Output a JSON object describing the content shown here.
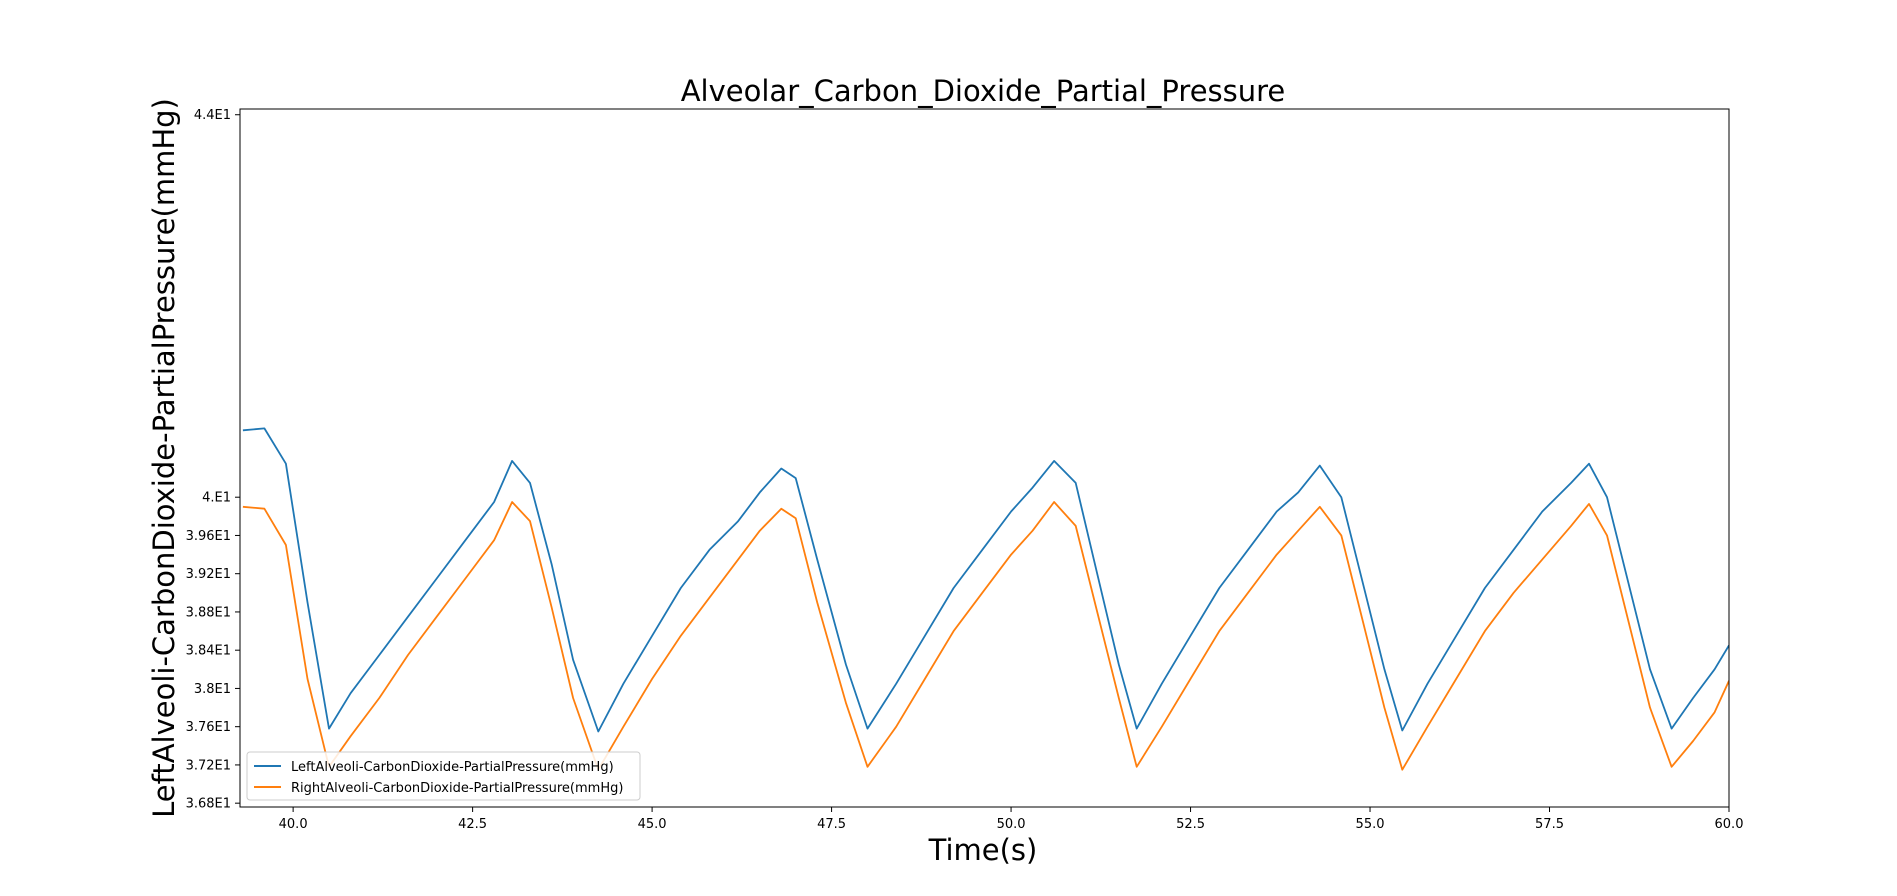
{
  "chart_data": {
    "type": "line",
    "title": "Alveolar_Carbon_Dioxide_Partial_Pressure",
    "xlabel": "Time(s)",
    "ylabel": "LeftAlveoli-CarbonDioxide-PartialPressure(mmHg)",
    "xlim": [
      39.26,
      60.0
    ],
    "ylim": [
      36.76,
      44.06
    ],
    "x_ticks": [
      40.0,
      42.5,
      45.0,
      47.5,
      50.0,
      52.5,
      55.0,
      57.5,
      60.0
    ],
    "x_tick_labels": [
      "40.0",
      "42.5",
      "45.0",
      "47.5",
      "50.0",
      "52.5",
      "55.0",
      "57.5",
      "60.0"
    ],
    "y_ticks": [
      36.8,
      37.2,
      37.6,
      38.0,
      38.4,
      38.8,
      39.2,
      39.6,
      40.0,
      44.0
    ],
    "y_tick_labels": [
      "3.68E1",
      "3.72E1",
      "3.76E1",
      "3.8E1",
      "3.84E1",
      "3.88E1",
      "3.92E1",
      "3.96E1",
      "4.E1",
      "4.4E1"
    ],
    "grid": false,
    "legend_position": "lower-left",
    "series": [
      {
        "name": "LeftAlveoli-CarbonDioxide-PartialPressure(mmHg)",
        "color": "#1f77b4",
        "x": [
          39.3,
          39.6,
          39.9,
          40.2,
          40.5,
          40.8,
          41.2,
          41.6,
          42.0,
          42.4,
          42.8,
          43.05,
          43.3,
          43.6,
          43.9,
          44.25,
          44.6,
          45.0,
          45.4,
          45.8,
          46.2,
          46.5,
          46.8,
          47.0,
          47.3,
          47.7,
          48.0,
          48.4,
          48.8,
          49.2,
          49.6,
          50.0,
          50.3,
          50.6,
          50.9,
          51.2,
          51.5,
          51.75,
          52.1,
          52.5,
          52.9,
          53.3,
          53.7,
          54.0,
          54.3,
          54.6,
          54.9,
          55.2,
          55.45,
          55.8,
          56.2,
          56.6,
          57.0,
          57.4,
          57.8,
          58.05,
          58.3,
          58.6,
          58.9,
          59.2,
          59.5,
          59.8,
          60.0
        ],
        "y": [
          40.7,
          40.72,
          40.35,
          38.9,
          37.58,
          37.95,
          38.35,
          38.75,
          39.15,
          39.55,
          39.95,
          40.38,
          40.15,
          39.3,
          38.3,
          37.55,
          38.05,
          38.55,
          39.05,
          39.45,
          39.75,
          40.05,
          40.3,
          40.2,
          39.35,
          38.25,
          37.58,
          38.05,
          38.55,
          39.05,
          39.45,
          39.85,
          40.1,
          40.38,
          40.15,
          39.2,
          38.25,
          37.58,
          38.05,
          38.55,
          39.05,
          39.45,
          39.85,
          40.05,
          40.33,
          40.0,
          39.1,
          38.2,
          37.56,
          38.05,
          38.55,
          39.05,
          39.45,
          39.85,
          40.15,
          40.35,
          40.0,
          39.1,
          38.2,
          37.58,
          37.9,
          38.2,
          38.45
        ]
      },
      {
        "name": "RightAlveoli-CarbonDioxide-PartialPressure(mmHg)",
        "color": "#ff7f0e",
        "x": [
          39.3,
          39.6,
          39.9,
          40.2,
          40.5,
          40.8,
          41.2,
          41.6,
          42.0,
          42.4,
          42.8,
          43.05,
          43.3,
          43.6,
          43.9,
          44.25,
          44.6,
          45.0,
          45.4,
          45.8,
          46.2,
          46.5,
          46.8,
          47.0,
          47.3,
          47.7,
          48.0,
          48.4,
          48.8,
          49.2,
          49.6,
          50.0,
          50.3,
          50.6,
          50.9,
          51.2,
          51.5,
          51.75,
          52.1,
          52.5,
          52.9,
          53.3,
          53.7,
          54.0,
          54.3,
          54.6,
          54.9,
          55.2,
          55.45,
          55.8,
          56.2,
          56.6,
          57.0,
          57.4,
          57.8,
          58.05,
          58.3,
          58.6,
          58.9,
          59.2,
          59.5,
          59.8,
          60.0
        ],
        "y": [
          39.9,
          39.88,
          39.5,
          38.1,
          37.18,
          37.5,
          37.9,
          38.35,
          38.75,
          39.15,
          39.55,
          39.95,
          39.75,
          38.85,
          37.9,
          37.15,
          37.6,
          38.1,
          38.55,
          38.95,
          39.35,
          39.65,
          39.88,
          39.78,
          38.9,
          37.85,
          37.18,
          37.6,
          38.1,
          38.6,
          39.0,
          39.4,
          39.65,
          39.95,
          39.7,
          38.8,
          37.9,
          37.18,
          37.6,
          38.1,
          38.6,
          39.0,
          39.4,
          39.65,
          39.9,
          39.6,
          38.7,
          37.8,
          37.15,
          37.6,
          38.1,
          38.6,
          39.0,
          39.35,
          39.7,
          39.93,
          39.6,
          38.7,
          37.8,
          37.18,
          37.45,
          37.75,
          38.08
        ]
      }
    ]
  }
}
